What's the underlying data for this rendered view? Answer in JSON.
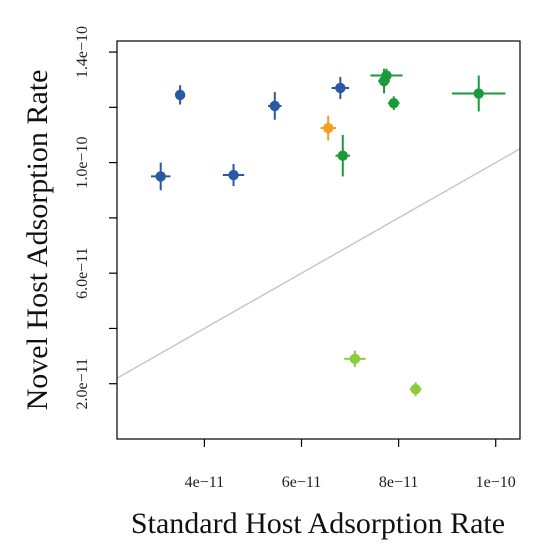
{
  "chart_data": {
    "type": "scatter",
    "title": "",
    "xlabel": "Standard Host Adsorption Rate",
    "ylabel": "Novel Host Adsorption Rate",
    "xlim": [
      2.2e-11,
      1.05e-10
    ],
    "ylim": [
      0.0,
      1.44e-10
    ],
    "x_ticks": [
      4e-11,
      6e-11,
      8e-11,
      1e-10
    ],
    "x_tick_labels": [
      "4e−11",
      "6e−11",
      "8e−11",
      "1e−10"
    ],
    "y_ticks": [
      2e-11,
      4e-11,
      6e-11,
      8e-11,
      1e-10,
      1.2e-10,
      1.4e-10
    ],
    "y_tick_labels": [
      "2.0e−11",
      "",
      "6.0e−11",
      "",
      "1.0e−10",
      "",
      "1.4e−10"
    ],
    "grid": false,
    "reference_line": {
      "type": "identity",
      "color": "#c8c8c8"
    },
    "points": [
      {
        "x": 3.1e-11,
        "y": 9.5e-11,
        "x_err": 2e-12,
        "y_err": 5e-12,
        "color": "#2958a4"
      },
      {
        "x": 3.5e-11,
        "y": 1.245e-10,
        "x_err": 1e-12,
        "y_err": 3.5e-12,
        "color": "#2958a4"
      },
      {
        "x": 4.6e-11,
        "y": 9.55e-11,
        "x_err": 2.2e-12,
        "y_err": 4e-12,
        "color": "#2958a4"
      },
      {
        "x": 5.45e-11,
        "y": 1.205e-10,
        "x_err": 1.4e-12,
        "y_err": 5e-12,
        "color": "#2958a4"
      },
      {
        "x": 6.8e-11,
        "y": 1.27e-10,
        "x_err": 1.8e-12,
        "y_err": 4e-12,
        "color": "#2958a4"
      },
      {
        "x": 6.55e-11,
        "y": 1.125e-10,
        "x_err": 1.6e-12,
        "y_err": 4.5e-12,
        "color": "#f5a020"
      },
      {
        "x": 6.85e-11,
        "y": 1.025e-10,
        "x_err": 1.5e-12,
        "y_err": 7.5e-12,
        "color": "#1a9a3a"
      },
      {
        "x": 7.7e-11,
        "y": 1.295e-10,
        "x_err": 1.2e-12,
        "y_err": 4.5e-12,
        "color": "#1a9a3a"
      },
      {
        "x": 7.75e-11,
        "y": 1.315e-10,
        "x_err": 3.3e-12,
        "y_err": 2.5e-12,
        "color": "#1a9a3a"
      },
      {
        "x": 7.9e-11,
        "y": 1.215e-10,
        "x_err": 1.2e-12,
        "y_err": 2.5e-12,
        "color": "#1a9a3a"
      },
      {
        "x": 9.65e-11,
        "y": 1.25e-10,
        "x_err": 5.5e-12,
        "y_err": 6.5e-12,
        "color": "#1a9a3a"
      },
      {
        "x": 7.1e-11,
        "y": 2.9e-11,
        "x_err": 2.2e-12,
        "y_err": 3e-12,
        "color": "#8ccc3c"
      },
      {
        "x": 8.35e-11,
        "y": 1.8e-11,
        "x_err": 1.2e-12,
        "y_err": 2.5e-12,
        "color": "#8ccc3c"
      }
    ]
  }
}
